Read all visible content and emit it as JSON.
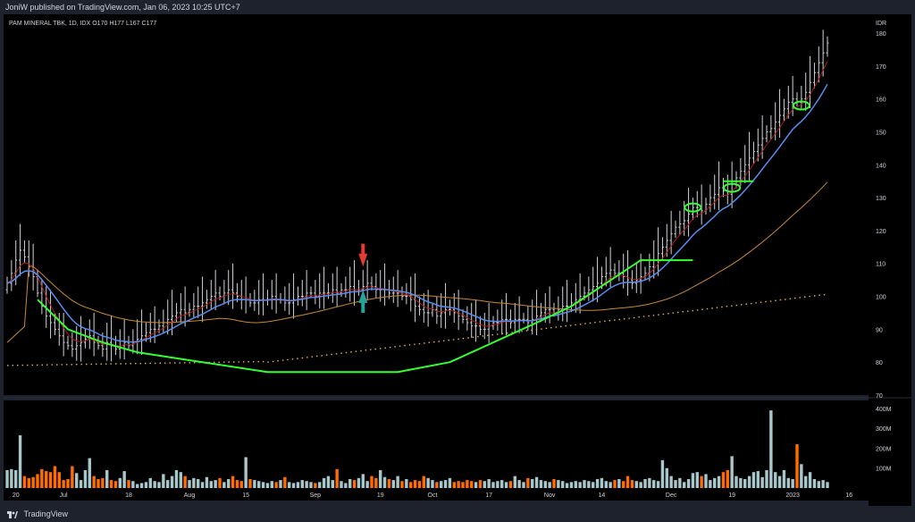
{
  "header": {
    "published": "JoniW published on TradingView.com, Jan 06, 2023 10:25 UTC+7"
  },
  "footer": {
    "brand": "TradingView"
  },
  "colors": {
    "background": "#000000",
    "frame": "#1e222d",
    "candle": "#d1d4dc",
    "ema_red": "#b71c1c",
    "ema_blue": "#5b8def",
    "ma_orange": "#c48a3a",
    "ma_dotted": "#e0b04a",
    "drawing_green": "#33ff33",
    "volume_up": "#a7c7cb",
    "volume_down": "#ff6d00",
    "arrow_down": "#e53935",
    "arrow_up": "#26a69a"
  },
  "chart_data": {
    "type": "candlestick",
    "symbol_line": "PAM MINERAL TBK, 1D, IDX",
    "ohlc": {
      "O": "O170",
      "H": "H177",
      "L": "L167",
      "C": "C177"
    },
    "currency": "IDR",
    "ylim": [
      70,
      183
    ],
    "y_ticks": [
      180,
      170,
      160,
      150,
      140,
      130,
      120,
      110,
      100,
      90,
      80,
      70
    ],
    "volume_ticks": [
      "400M",
      "300M",
      "200M",
      "100M"
    ],
    "volume_max": 440,
    "x_labels": [
      {
        "label": "20",
        "i": 2
      },
      {
        "label": "Jul",
        "i": 13
      },
      {
        "label": "18",
        "i": 28
      },
      {
        "label": "Aug",
        "i": 42
      },
      {
        "label": "15",
        "i": 55
      },
      {
        "label": "Sep",
        "i": 71
      },
      {
        "label": "19",
        "i": 86
      },
      {
        "label": "Oct",
        "i": 98
      },
      {
        "label": "17",
        "i": 111
      },
      {
        "label": "Nov",
        "i": 125
      },
      {
        "label": "14",
        "i": 137
      },
      {
        "label": "Dec",
        "i": 153
      },
      {
        "label": "19",
        "i": 167
      },
      {
        "label": "2023",
        "i": 181
      },
      {
        "label": "16",
        "i": 194
      }
    ],
    "bars": {
      "close": [
        104,
        107,
        111,
        114,
        112,
        109,
        106,
        101,
        97,
        94,
        92,
        90,
        88,
        86,
        85,
        84,
        85,
        86,
        87,
        88,
        86,
        85,
        84,
        86,
        85,
        84,
        85,
        86,
        85,
        86,
        87,
        88,
        89,
        90,
        90,
        91,
        92,
        93,
        94,
        95,
        96,
        95,
        96,
        97,
        97,
        98,
        99,
        100,
        101,
        100,
        101,
        102,
        101,
        100,
        99,
        99,
        98,
        98,
        99,
        99,
        99,
        100,
        99,
        99,
        98,
        98,
        99,
        100,
        100,
        101,
        101,
        100,
        101,
        101,
        101,
        102,
        101,
        102,
        102,
        103,
        102,
        102,
        103,
        104,
        103,
        102,
        102,
        102,
        101,
        101,
        101,
        100,
        100,
        99,
        97,
        96,
        95,
        95,
        96,
        94,
        95,
        96,
        96,
        95,
        94,
        93,
        92,
        91,
        91,
        90,
        90,
        91,
        92,
        92,
        93,
        93,
        92,
        93,
        93,
        93,
        92,
        93,
        94,
        95,
        96,
        96,
        95,
        96,
        97,
        97,
        98,
        99,
        100,
        101,
        102,
        103,
        104,
        106,
        107,
        108,
        107,
        107,
        106,
        105,
        104,
        105,
        106,
        107,
        109,
        111,
        113,
        115,
        117,
        119,
        121,
        122,
        123,
        125,
        127,
        127,
        126,
        128,
        130,
        131,
        133,
        132,
        131,
        134,
        136,
        138,
        140,
        142,
        144,
        146,
        148,
        150,
        151,
        153,
        155,
        157,
        159,
        160,
        159,
        160,
        162,
        165,
        168,
        171,
        174,
        177
      ],
      "volume": [
        90,
        95,
        90,
        265,
        60,
        50,
        55,
        70,
        95,
        85,
        80,
        110,
        80,
        40,
        45,
        110,
        75,
        40,
        90,
        150,
        60,
        45,
        50,
        90,
        40,
        35,
        50,
        85,
        40,
        35,
        20,
        25,
        30,
        50,
        35,
        30,
        70,
        40,
        60,
        90,
        80,
        60,
        40,
        50,
        45,
        30,
        55,
        35,
        40,
        50,
        30,
        45,
        60,
        40,
        35,
        155,
        45,
        40,
        35,
        30,
        25,
        35,
        30,
        40,
        55,
        30,
        25,
        30,
        40,
        35,
        30,
        25,
        30,
        50,
        60,
        40,
        95,
        35,
        25,
        45,
        40,
        50,
        70,
        35,
        60,
        50,
        90,
        55,
        45,
        40,
        60,
        35,
        45,
        30,
        40,
        35,
        60,
        50,
        40,
        30,
        35,
        40,
        50,
        30,
        35,
        30,
        40,
        35,
        30,
        40,
        35,
        45,
        30,
        35,
        40,
        30,
        35,
        60,
        40,
        30,
        50,
        45,
        55,
        40,
        35,
        30,
        45,
        40,
        35,
        25,
        30,
        35,
        30,
        40,
        35,
        30,
        45,
        50,
        35,
        30,
        40,
        45,
        35,
        60,
        40,
        35,
        30,
        45,
        50,
        40,
        35,
        140,
        100,
        60,
        40,
        50,
        30,
        45,
        75,
        80,
        60,
        70,
        40,
        50,
        60,
        80,
        90,
        160,
        60,
        50,
        45,
        60,
        80,
        85,
        55,
        90,
        390,
        80,
        60,
        90,
        50,
        45,
        220,
        120,
        60,
        80,
        45,
        35,
        40,
        30
      ]
    },
    "series": [
      {
        "name": "",
        "style": "ema_fast"
      },
      {
        "name": "",
        "style": "ema_mid"
      },
      {
        "name": "",
        "style": "ma_long"
      },
      {
        "name": "",
        "style": "ma_dotted"
      }
    ]
  }
}
